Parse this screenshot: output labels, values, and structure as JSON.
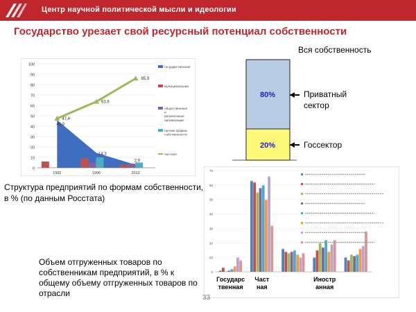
{
  "header": {
    "title": "Центр научной политической мысли и идеологии"
  },
  "slide": {
    "title": "Государство урезает свой ресурсный  потенциал  собственности",
    "caption1": "Структура предприятий по формам собственности, в % (по данным Росстата)",
    "caption2": "Объем отгруженных товаров по собственникам предприятий, в % к общему объему отгруженных товаров по отрасли",
    "page_number": "33"
  },
  "colors": {
    "header": "#c0272d",
    "state": "#fff979",
    "private": "#b8cce4"
  },
  "chart_data": [
    {
      "type": "bar",
      "categories": [
        "1992",
        "1996",
        "2012"
      ],
      "ylim": [
        0,
        100
      ],
      "yticks": [
        0,
        10,
        20,
        30,
        40,
        50,
        60,
        70,
        80,
        90,
        100
      ],
      "series": [
        {
          "name": "государственная",
          "type": "area",
          "color": "#3f6dbf",
          "values": [
            45.9,
            14.3,
            2.9
          ]
        },
        {
          "name": "муниципальная",
          "type": "bar",
          "color": "#c0504d",
          "values": [
            6,
            9,
            3
          ]
        },
        {
          "name": "общественные и религиозные организации",
          "type": "bar",
          "color": "#8064a2",
          "values": [
            0,
            5,
            4
          ]
        },
        {
          "name": "прочие формы собственности",
          "type": "bar",
          "color": "#4bacc6",
          "values": [
            0,
            10,
            5
          ]
        },
        {
          "name": "частная",
          "type": "line",
          "color": "#9bbb59",
          "values": [
            47.4,
            63.6,
            85.9
          ]
        }
      ],
      "data_labels": [
        "47,4",
        "63,6",
        "85,9",
        "45,9",
        "14,3",
        "2,9"
      ]
    },
    {
      "type": "bar",
      "stacked": true,
      "title": "Вся собственность",
      "segments": [
        {
          "name": "Приватный сектор",
          "value": 80,
          "label": "80%"
        },
        {
          "name": "Госсектор",
          "value": 20,
          "label": "20%"
        }
      ]
    },
    {
      "type": "bar",
      "categories": [
        "Государственная",
        "Частная",
        "",
        "Иностранная",
        ""
      ],
      "ylim": [
        0,
        70
      ],
      "yticks": [
        0,
        10,
        20,
        30,
        40,
        50,
        60,
        70
      ],
      "bar_colors": [
        "#4f81bd",
        "#c0504d",
        "#9bbb59",
        "#8064a2",
        "#4bacc6",
        "#f79646",
        "#b7a4cf",
        "#d99694"
      ],
      "groups": [
        [
          1,
          3,
          0.5,
          1,
          2,
          4,
          10,
          8
        ],
        [
          63,
          62,
          55,
          58,
          60,
          50,
          66,
          32
        ],
        [
          16,
          14,
          13,
          14,
          15,
          12,
          10,
          13
        ],
        [
          10,
          15,
          20,
          17,
          22,
          14,
          19,
          22
        ],
        [
          10,
          8,
          12,
          11,
          12,
          16,
          18,
          28
        ]
      ]
    }
  ]
}
